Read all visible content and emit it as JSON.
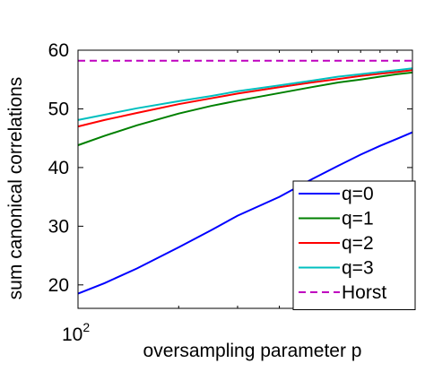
{
  "chart_data": {
    "type": "line",
    "xlabel": "oversampling parameter p",
    "ylabel": "sum canonical correlations",
    "xscale": "log",
    "xlim": [
      100,
      1000
    ],
    "ylim": [
      16,
      60
    ],
    "x_tick_label": {
      "base": "10",
      "exp": "2"
    },
    "y_ticks": [
      20,
      30,
      40,
      50,
      60
    ],
    "grid": false,
    "legend_position": "bottom-right",
    "x": [
      100,
      120,
      150,
      200,
      250,
      300,
      400,
      500,
      600,
      700,
      800,
      900,
      1000
    ],
    "series": [
      {
        "name": "q=0",
        "color": "#0000ff",
        "dash": "solid",
        "values": [
          18.5,
          20.3,
          22.8,
          26.4,
          29.3,
          31.8,
          35.0,
          38.0,
          40.3,
          42.2,
          43.7,
          44.9,
          46.0
        ]
      },
      {
        "name": "q=1",
        "color": "#008000",
        "dash": "solid",
        "values": [
          43.8,
          45.4,
          47.2,
          49.2,
          50.5,
          51.4,
          52.7,
          53.7,
          54.5,
          55.0,
          55.5,
          55.9,
          56.2
        ]
      },
      {
        "name": "q=2",
        "color": "#ff0000",
        "dash": "solid",
        "values": [
          47.0,
          48.1,
          49.3,
          50.8,
          51.8,
          52.6,
          53.7,
          54.5,
          55.1,
          55.6,
          56.0,
          56.3,
          56.6
        ]
      },
      {
        "name": "q=3",
        "color": "#00bfbf",
        "dash": "solid",
        "values": [
          48.1,
          49.0,
          50.1,
          51.3,
          52.2,
          53.0,
          54.0,
          54.8,
          55.5,
          55.9,
          56.3,
          56.6,
          56.9
        ]
      },
      {
        "name": "Horst",
        "color": "#bf00bf",
        "dash": "dashed",
        "values": [
          58.2,
          58.2,
          58.2,
          58.2,
          58.2,
          58.2,
          58.2,
          58.2,
          58.2,
          58.2,
          58.2,
          58.2,
          58.2
        ]
      }
    ]
  }
}
